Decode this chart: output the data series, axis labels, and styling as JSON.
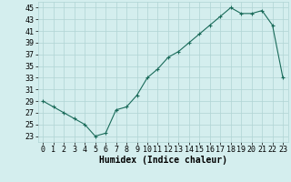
{
  "x": [
    0,
    1,
    2,
    3,
    4,
    5,
    6,
    7,
    8,
    9,
    10,
    11,
    12,
    13,
    14,
    15,
    16,
    17,
    18,
    19,
    20,
    21,
    22,
    23
  ],
  "y": [
    29,
    28,
    27,
    26,
    25,
    23,
    23.5,
    27.5,
    28,
    30,
    33,
    34.5,
    36.5,
    37.5,
    39,
    40.5,
    42,
    43.5,
    45,
    44,
    44,
    44.5,
    42,
    33
  ],
  "line_color": "#1a6b5a",
  "marker": "+",
  "marker_size": 3,
  "bg_color": "#d4eeee",
  "grid_color": "#b0d4d4",
  "xlabel": "Humidex (Indice chaleur)",
  "xlabel_fontsize": 7,
  "tick_fontsize": 6,
  "ylim": [
    22,
    46
  ],
  "xlim": [
    -0.5,
    23.5
  ],
  "yticks": [
    23,
    25,
    27,
    29,
    31,
    33,
    35,
    37,
    39,
    41,
    43,
    45
  ],
  "xticks": [
    0,
    1,
    2,
    3,
    4,
    5,
    6,
    7,
    8,
    9,
    10,
    11,
    12,
    13,
    14,
    15,
    16,
    17,
    18,
    19,
    20,
    21,
    22,
    23
  ]
}
